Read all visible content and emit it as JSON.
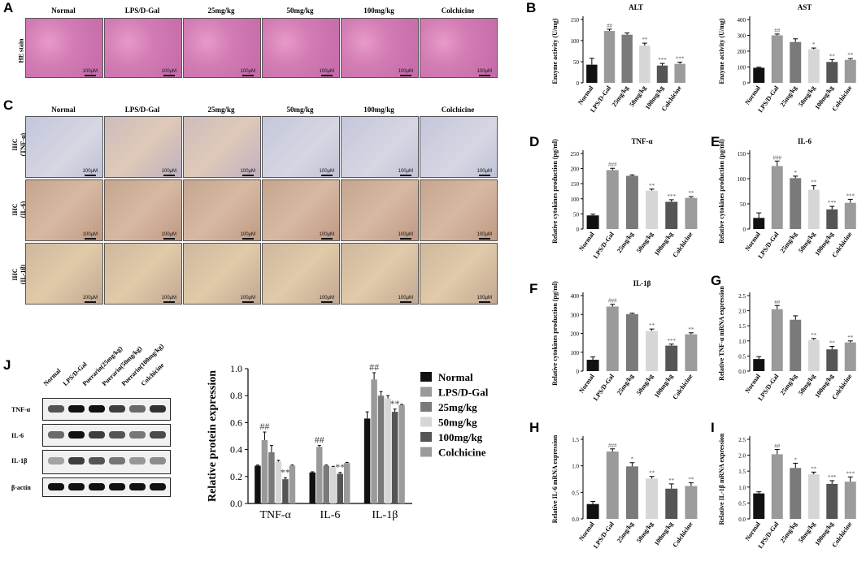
{
  "panels": {
    "A": "A",
    "B": "B",
    "C": "C",
    "D": "D",
    "E": "E",
    "F": "F",
    "G": "G",
    "H": "H",
    "I": "I",
    "J": "J"
  },
  "groups": [
    "Normal",
    "LPS/D-Gal",
    "25mg/kg",
    "50mg/kg",
    "100mg/kg",
    "Colchicine"
  ],
  "he_row_label": "HE stain",
  "ihc_row_labels": [
    "IHC\n(TNF-α)",
    "IHC\n(IL-6)",
    "IHC\n(IL-1β)"
  ],
  "scale_bar": "100μM",
  "western": {
    "lanes": [
      "Normal",
      "LPS/D-Gal",
      "Puerarin(25mg/kg)",
      "Puerarin(50mg/kg)",
      "Puerarin(100mg/kg)",
      "Colchicine"
    ],
    "proteins": [
      "TNF-α",
      "IL-6",
      "IL-1β",
      "β-actin"
    ]
  },
  "colors": {
    "g0": "#111111",
    "g1": "#9a9a9a",
    "g2": "#7a7a7a",
    "g3": "#d6d6d6",
    "g4": "#555555",
    "g5": "#9b9b9b"
  },
  "chart_data": [
    {
      "id": "ALT",
      "type": "bar",
      "title": "ALT",
      "ylabel": "Enzyme activity (U/mg)",
      "ylim": [
        0,
        150
      ],
      "yticks": [
        0,
        50,
        100,
        150
      ],
      "categories": [
        "Normal",
        "LPS/D-Gal",
        "25mg/kg",
        "50mg/kg",
        "100mg/kg",
        "Colchicine"
      ],
      "values": [
        43,
        123,
        114,
        88,
        41,
        45
      ],
      "errors": [
        15,
        4,
        4,
        6,
        5,
        4
      ],
      "annotations": [
        "",
        "##",
        "",
        "**",
        "***",
        "***"
      ]
    },
    {
      "id": "AST",
      "type": "bar",
      "title": "AST",
      "ylabel": "Enzyme activity (U/mg)",
      "ylim": [
        0,
        400
      ],
      "yticks": [
        0,
        100,
        200,
        300,
        400
      ],
      "categories": [
        "Normal",
        "LPS/D-Gal",
        "25mg/kg",
        "50mg/kg",
        "100mg/kg",
        "Colchicine"
      ],
      "values": [
        95,
        300,
        258,
        212,
        132,
        145
      ],
      "errors": [
        4,
        8,
        20,
        8,
        15,
        8
      ],
      "annotations": [
        "",
        "##",
        "",
        "*",
        "**",
        "**"
      ]
    },
    {
      "id": "TNF",
      "type": "bar",
      "title": "TNF-α",
      "ylabel": "Relative cytokines production (pg/ml)",
      "ylim": [
        0,
        250
      ],
      "yticks": [
        0,
        50,
        100,
        150,
        200,
        250
      ],
      "categories": [
        "Normal",
        "LPS/D-Gal",
        "25mg/kg",
        "50mg/kg",
        "100mg/kg",
        "Colchicine"
      ],
      "values": [
        45,
        195,
        176,
        127,
        90,
        103
      ],
      "errors": [
        4,
        6,
        3,
        5,
        7,
        4
      ],
      "annotations": [
        "",
        "###",
        "",
        "**",
        "***",
        "**"
      ]
    },
    {
      "id": "IL6",
      "type": "bar",
      "title": "IL-6",
      "ylabel": "Relative cytokines production (pg/ml)",
      "ylim": [
        0,
        150
      ],
      "yticks": [
        0,
        50,
        100,
        150
      ],
      "categories": [
        "Normal",
        "LPS/D-Gal",
        "25mg/kg",
        "50mg/kg",
        "100mg/kg",
        "Colchicine"
      ],
      "values": [
        22,
        125,
        101,
        78,
        39,
        52
      ],
      "errors": [
        10,
        10,
        4,
        8,
        6,
        7
      ],
      "annotations": [
        "",
        "###",
        "*",
        "**",
        "***",
        "***"
      ]
    },
    {
      "id": "IL1B",
      "type": "bar",
      "title": "IL-1β",
      "ylabel": "Relative cytokines production (pg/ml)",
      "ylim": [
        0,
        400
      ],
      "yticks": [
        0,
        100,
        200,
        300,
        400
      ],
      "categories": [
        "Normal",
        "LPS/D-Gal",
        "25mg/kg",
        "50mg/kg",
        "100mg/kg",
        "Colchicine"
      ],
      "values": [
        60,
        342,
        302,
        213,
        135,
        195
      ],
      "errors": [
        15,
        12,
        5,
        10,
        8,
        8
      ],
      "annotations": [
        "",
        "###",
        "",
        "**",
        "***",
        "**"
      ]
    },
    {
      "id": "G",
      "type": "bar",
      "title": "",
      "ylabel": "Relative TNF-α mRNA expression",
      "ylim": [
        0,
        2.5
      ],
      "yticks": [
        0.0,
        0.5,
        1.0,
        1.5,
        2.0,
        2.5
      ],
      "categories": [
        "Normal",
        "LPS/D-Gal",
        "25mg/kg",
        "50mg/kg",
        "100mg/kg",
        "Colchicine"
      ],
      "values": [
        0.4,
        2.05,
        1.7,
        1.03,
        0.72,
        0.95
      ],
      "errors": [
        0.08,
        0.12,
        0.13,
        0.05,
        0.1,
        0.05
      ],
      "annotations": [
        "",
        "##",
        "",
        "**",
        "**",
        "**"
      ]
    },
    {
      "id": "H",
      "type": "bar",
      "title": "",
      "ylabel": "Relative IL-6 mRNA expression",
      "ylim": [
        0,
        1.5
      ],
      "yticks": [
        0.0,
        0.5,
        1.0,
        1.5
      ],
      "categories": [
        "Normal",
        "LPS/D-Gal",
        "25mg/kg",
        "50mg/kg",
        "100mg/kg",
        "Colchicine"
      ],
      "values": [
        0.28,
        1.27,
        0.99,
        0.76,
        0.57,
        0.62
      ],
      "errors": [
        0.05,
        0.05,
        0.07,
        0.04,
        0.09,
        0.06
      ],
      "annotations": [
        "",
        "###",
        "*",
        "**",
        "**",
        "**"
      ]
    },
    {
      "id": "I",
      "type": "bar",
      "title": "",
      "ylabel": "Relative IL-1β mRNA expression",
      "ylim": [
        0,
        2.5
      ],
      "yticks": [
        0.0,
        0.5,
        1.0,
        1.5,
        2.0,
        2.5
      ],
      "categories": [
        "Normal",
        "LPS/D-Gal",
        "25mg/kg",
        "50mg/kg",
        "100mg/kg",
        "Colchicine"
      ],
      "values": [
        0.8,
        2.03,
        1.6,
        1.4,
        1.1,
        1.17
      ],
      "errors": [
        0.05,
        0.15,
        0.15,
        0.07,
        0.1,
        0.15
      ],
      "annotations": [
        "",
        "##",
        "*",
        "**",
        "***",
        "***"
      ]
    },
    {
      "id": "J",
      "type": "bar",
      "title": "",
      "ylabel": "Relative protein expression",
      "ylim": [
        0,
        1.0
      ],
      "yticks": [
        0.0,
        0.2,
        0.4,
        0.6,
        0.8,
        1.0
      ],
      "categories": [
        "TNF-α",
        "IL-6",
        "IL-1β"
      ],
      "series": [
        {
          "name": "Normal",
          "values": [
            0.28,
            0.23,
            0.63
          ],
          "errors": [
            0.005,
            0.005,
            0.05
          ]
        },
        {
          "name": "LPS/D-Gal",
          "values": [
            0.47,
            0.42,
            0.92
          ],
          "errors": [
            0.06,
            0.01,
            0.05
          ]
        },
        {
          "name": "25mg/kg",
          "values": [
            0.38,
            0.28,
            0.8
          ],
          "errors": [
            0.05,
            0.005,
            0.03
          ]
        },
        {
          "name": "50mg/kg",
          "values": [
            0.31,
            0.27,
            0.78
          ],
          "errors": [
            0.01,
            0.005,
            0.02
          ]
        },
        {
          "name": "100mg/kg",
          "values": [
            0.18,
            0.22,
            0.68
          ],
          "errors": [
            0.01,
            0.01,
            0.02
          ]
        },
        {
          "name": "Colchicine",
          "values": [
            0.28,
            0.3,
            0.73
          ],
          "errors": [
            0.005,
            0.005,
            0.005
          ]
        }
      ],
      "annotations": [
        [
          "",
          "##",
          "",
          "",
          "**",
          ""
        ],
        [
          "",
          "##",
          "",
          "",
          "**",
          ""
        ],
        [
          "",
          "##",
          "",
          "",
          "**",
          ""
        ]
      ],
      "legend": "right"
    }
  ]
}
